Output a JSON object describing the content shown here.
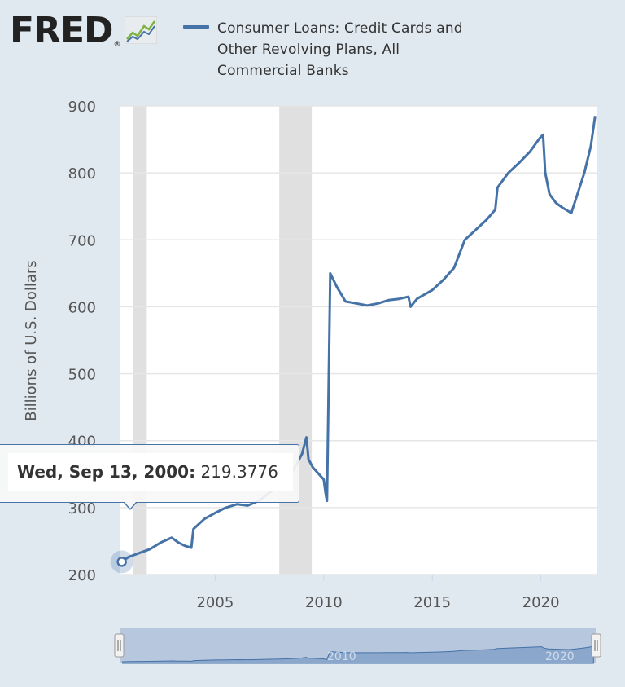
{
  "logo": {
    "text": "FRED",
    "reg_mark": "®"
  },
  "legend": {
    "label": "Consumer Loans: Credit Cards and Other Revolving Plans, All Commercial Banks",
    "color": "#4572a7"
  },
  "tooltip": {
    "date": "Wed, Sep 13, 2000:",
    "value": " 219.3776"
  },
  "colors": {
    "background": "#e1e9f0",
    "line": "#4572a7",
    "recession": "#e0e0e0",
    "navigator_fill": "#8ba7cc"
  },
  "navigator": {
    "labels": [
      "2010",
      "2020"
    ]
  },
  "chart_data": {
    "type": "line",
    "title": "",
    "xlabel": "",
    "ylabel": "Billions of U.S. Dollars",
    "xlim": [
      2000.6,
      2022.6
    ],
    "ylim": [
      200,
      900
    ],
    "xticks": [
      2005,
      2010,
      2015,
      2020
    ],
    "yticks": [
      200,
      300,
      400,
      500,
      600,
      700,
      800,
      900
    ],
    "grid": "horizontal",
    "legend_position": "top",
    "recessions": [
      [
        2001.2,
        2001.85
      ],
      [
        2007.95,
        2009.45
      ]
    ],
    "series": [
      {
        "name": "Consumer Loans: Credit Cards and Other Revolving Plans, All Commercial Banks",
        "x": [
          2000.7,
          2001.0,
          2001.5,
          2002.0,
          2002.5,
          2003.0,
          2003.3,
          2003.6,
          2003.9,
          2004.0,
          2004.5,
          2005.0,
          2005.5,
          2006.0,
          2006.5,
          2007.0,
          2007.5,
          2008.0,
          2008.5,
          2009.0,
          2009.2,
          2009.3,
          2009.5,
          2010.0,
          2010.1,
          2010.15,
          2010.3,
          2010.6,
          2011.0,
          2011.5,
          2012.0,
          2012.5,
          2013.0,
          2013.5,
          2013.9,
          2014.0,
          2014.3,
          2015.0,
          2015.5,
          2016.0,
          2016.5,
          2017.0,
          2017.5,
          2017.9,
          2018.0,
          2018.5,
          2019.0,
          2019.5,
          2019.95,
          2020.1,
          2020.2,
          2020.4,
          2020.7,
          2021.0,
          2021.4,
          2021.7,
          2022.0,
          2022.3,
          2022.5
        ],
        "y": [
          219,
          226,
          232,
          238,
          248,
          255,
          248,
          243,
          240,
          268,
          283,
          292,
          300,
          305,
          303,
          310,
          322,
          335,
          350,
          380,
          405,
          372,
          360,
          342,
          318,
          310,
          650,
          630,
          608,
          605,
          602,
          605,
          610,
          612,
          615,
          600,
          612,
          625,
          640,
          658,
          700,
          715,
          730,
          745,
          778,
          800,
          815,
          832,
          852,
          857,
          800,
          768,
          755,
          748,
          740,
          770,
          800,
          840,
          885
        ]
      }
    ]
  }
}
